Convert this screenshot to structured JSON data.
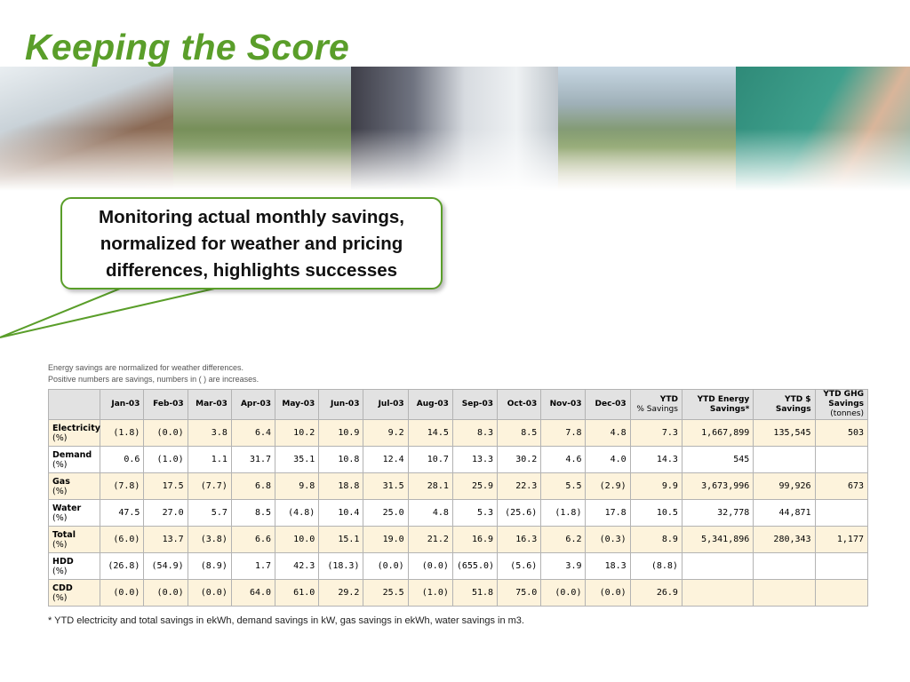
{
  "slide": {
    "title": "Keeping the Score",
    "callout_lines": [
      "Monitoring actual monthly savings,",
      "normalized for weather and pricing",
      "differences, highlights successes"
    ],
    "notes": [
      "Energy savings are normalized for weather differences.",
      "Positive numbers are savings, numbers in ( ) are increases."
    ],
    "footnote": "* YTD electricity and total savings in ekWh, demand savings in kW, gas savings in ekWh, water savings in m3."
  },
  "table": {
    "headers": [
      "",
      "Jan-03",
      "Feb-03",
      "Mar-03",
      "Apr-03",
      "May-03",
      "Jun-03",
      "Jul-03",
      "Aug-03",
      "Sep-03",
      "Oct-03",
      "Nov-03",
      "Dec-03",
      "YTD\n% Savings",
      "YTD Energy\nSavings*",
      "YTD $\nSavings",
      "YTD GHG\nSavings\n(tonnes)"
    ],
    "rows": [
      {
        "label": "Electricity",
        "unit": "(%)",
        "values": [
          "(1.8)",
          "(0.0)",
          "3.8",
          "6.4",
          "10.2",
          "10.9",
          "9.2",
          "14.5",
          "8.3",
          "8.5",
          "7.8",
          "4.8",
          "7.3",
          "1,667,899",
          "135,545",
          "503"
        ]
      },
      {
        "label": "Demand",
        "unit": "(%)",
        "values": [
          "0.6",
          "(1.0)",
          "1.1",
          "31.7",
          "35.1",
          "10.8",
          "12.4",
          "10.7",
          "13.3",
          "30.2",
          "4.6",
          "4.0",
          "14.3",
          "545",
          "",
          ""
        ]
      },
      {
        "label": "Gas",
        "unit": "(%)",
        "values": [
          "(7.8)",
          "17.5",
          "(7.7)",
          "6.8",
          "9.8",
          "18.8",
          "31.5",
          "28.1",
          "25.9",
          "22.3",
          "5.5",
          "(2.9)",
          "9.9",
          "3,673,996",
          "99,926",
          "673"
        ]
      },
      {
        "label": "Water",
        "unit": "(%)",
        "values": [
          "47.5",
          "27.0",
          "5.7",
          "8.5",
          "(4.8)",
          "10.4",
          "25.0",
          "4.8",
          "5.3",
          "(25.6)",
          "(1.8)",
          "17.8",
          "10.5",
          "32,778",
          "44,871",
          ""
        ]
      },
      {
        "label": "Total",
        "unit": "(%)",
        "values": [
          "(6.0)",
          "13.7",
          "(3.8)",
          "6.6",
          "10.0",
          "15.1",
          "19.0",
          "21.2",
          "16.9",
          "16.3",
          "6.2",
          "(0.3)",
          "8.9",
          "5,341,896",
          "280,343",
          "1,177"
        ]
      },
      {
        "label": "HDD",
        "unit": "(%)",
        "values": [
          "(26.8)",
          "(54.9)",
          "(8.9)",
          "1.7",
          "42.3",
          "(18.3)",
          "(0.0)",
          "(0.0)",
          "(655.0)",
          "(5.6)",
          "3.9",
          "18.3",
          "(8.8)",
          "",
          "",
          ""
        ]
      },
      {
        "label": "CDD",
        "unit": "(%)",
        "values": [
          "(0.0)",
          "(0.0)",
          "(0.0)",
          "64.0",
          "61.0",
          "29.2",
          "25.5",
          "(1.0)",
          "51.8",
          "75.0",
          "(0.0)",
          "(0.0)",
          "26.9",
          "",
          "",
          ""
        ]
      }
    ]
  },
  "colors": {
    "title_green": "#5a9e2a",
    "row_highlight": "#fdf3dc",
    "header_bg": "#e2e2e2"
  }
}
